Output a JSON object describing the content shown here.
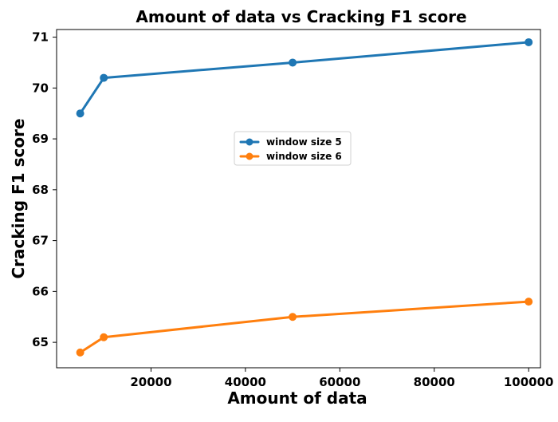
{
  "chart_data": {
    "type": "line",
    "title": "Amount of data vs Cracking F1 score",
    "xlabel": "Amount of data",
    "ylabel": "Cracking F1 score",
    "xlim": [
      0,
      102500
    ],
    "ylim": [
      64.5,
      71.15
    ],
    "xticks": [
      20000,
      40000,
      60000,
      80000,
      100000
    ],
    "xtick_labels": [
      "20000",
      "40000",
      "60000",
      "80000",
      "100000"
    ],
    "yticks": [
      65,
      66,
      67,
      68,
      69,
      70,
      71
    ],
    "ytick_labels": [
      "65",
      "66",
      "67",
      "68",
      "69",
      "70",
      "71"
    ],
    "grid": false,
    "legend_position": "center",
    "series": [
      {
        "name": "window size 5",
        "color": "#1f77b4",
        "x": [
          5000,
          10000,
          50000,
          100000
        ],
        "y": [
          69.5,
          70.2,
          70.5,
          70.9
        ]
      },
      {
        "name": "window size 6",
        "color": "#ff7f0e",
        "x": [
          5000,
          10000,
          50000,
          100000
        ],
        "y": [
          64.8,
          65.1,
          65.5,
          65.8
        ]
      }
    ]
  }
}
